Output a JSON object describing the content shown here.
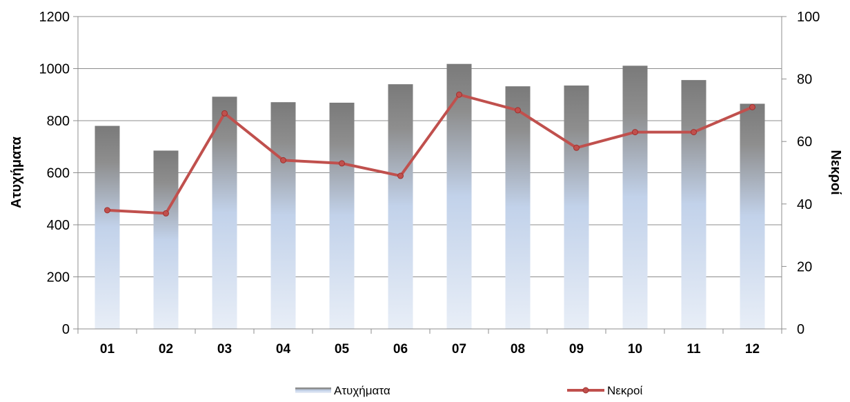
{
  "chart_data": {
    "type": "bar",
    "categories": [
      "01",
      "02",
      "03",
      "04",
      "05",
      "06",
      "07",
      "08",
      "09",
      "10",
      "11",
      "12"
    ],
    "series": [
      {
        "name": "Ατυχήματα",
        "type": "bar",
        "axis": "left",
        "values": [
          780,
          685,
          892,
          871,
          869,
          940,
          1018,
          932,
          935,
          1011,
          956,
          865
        ]
      },
      {
        "name": "Νεκροί",
        "type": "line",
        "axis": "right",
        "values": [
          38,
          37,
          69,
          54,
          53,
          49,
          75,
          70,
          58,
          63,
          63,
          71
        ]
      }
    ],
    "ylabel": "Ατυχήματα",
    "y2label": "Νεκροί",
    "ylim": [
      0,
      1200
    ],
    "y2lim": [
      0,
      100
    ],
    "yticks": [
      "0",
      "200",
      "400",
      "600",
      "800",
      "1000",
      "1200"
    ],
    "y2ticks": [
      "0",
      "20",
      "40",
      "60",
      "80",
      "100"
    ],
    "grid": true,
    "legend": "bottom",
    "colors": {
      "bar_top": "#7a7a7a",
      "bar_mid": "#c2d2ea",
      "bar_bottom": "#e6ecf6",
      "line": "#c0504d",
      "marker": "#c0504d",
      "gridline": "#8c8c8c"
    }
  }
}
